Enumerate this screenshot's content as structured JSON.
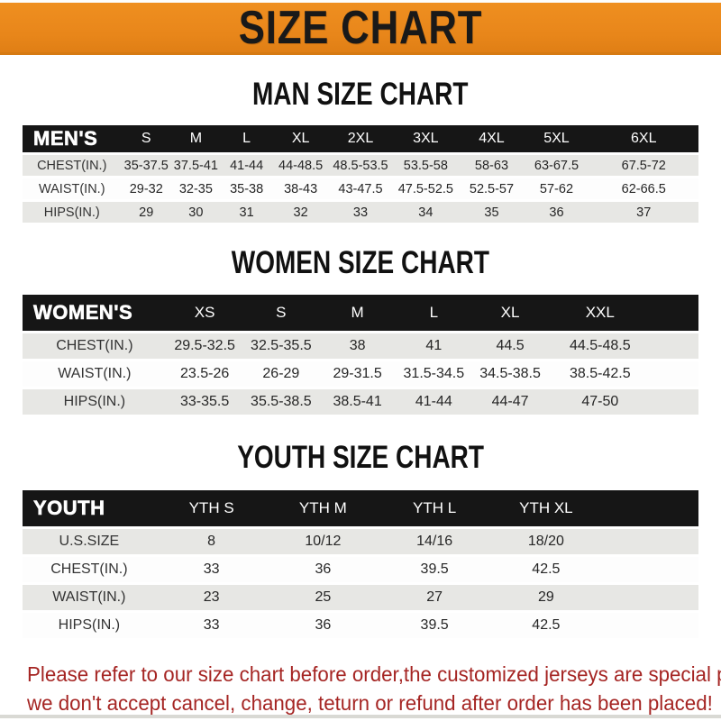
{
  "banner": {
    "title": "SIZE CHART",
    "bg_color": "#E8861A",
    "text_color": "#191919"
  },
  "sections": [
    {
      "title": "MAN SIZE CHART",
      "header_label": "MEN'S",
      "columns": [
        "S",
        "M",
        "L",
        "XL",
        "2XL",
        "3XL",
        "4XL",
        "5XL",
        "6XL"
      ],
      "rows": [
        {
          "label": "CHEST(IN.)",
          "values": [
            "35-37.5",
            "37.5-41",
            "41-44",
            "44-48.5",
            "48.5-53.5",
            "53.5-58",
            "58-63",
            "63-67.5",
            "67.5-72"
          ]
        },
        {
          "label": "WAIST(IN.)",
          "values": [
            "29-32",
            "32-35",
            "35-38",
            "38-43",
            "43-47.5",
            "47.5-52.5",
            "52.5-57",
            "57-62",
            "62-66.5"
          ]
        },
        {
          "label": "HIPS(IN.)",
          "values": [
            "29",
            "30",
            "31",
            "32",
            "33",
            "34",
            "35",
            "36",
            "37"
          ]
        }
      ]
    },
    {
      "title": "WOMEN SIZE CHART",
      "header_label": "WOMEN'S",
      "columns": [
        "XS",
        "S",
        "M",
        "L",
        "XL",
        "XXL"
      ],
      "rows": [
        {
          "label": "CHEST(IN.)",
          "values": [
            "29.5-32.5",
            "32.5-35.5",
            "38",
            "41",
            "44.5",
            "44.5-48.5"
          ]
        },
        {
          "label": "WAIST(IN.)",
          "values": [
            "23.5-26",
            "26-29",
            "29-31.5",
            "31.5-34.5",
            "34.5-38.5",
            "38.5-42.5"
          ]
        },
        {
          "label": "HIPS(IN.)",
          "values": [
            "33-35.5",
            "35.5-38.5",
            "38.5-41",
            "41-44",
            "44-47",
            "47-50"
          ]
        }
      ]
    },
    {
      "title": "YOUTH SIZE CHART",
      "header_label": "YOUTH",
      "columns": [
        "YTH S",
        "YTH M",
        "YTH L",
        "YTH XL"
      ],
      "rows": [
        {
          "label": "U.S.SIZE",
          "values": [
            "8",
            "10/12",
            "14/16",
            "18/20"
          ]
        },
        {
          "label": "CHEST(IN.)",
          "values": [
            "33",
            "36",
            "39.5",
            "42.5"
          ]
        },
        {
          "label": "WAIST(IN.)",
          "values": [
            "23",
            "25",
            "27",
            "29"
          ]
        },
        {
          "label": "HIPS(IN.)",
          "values": [
            "33",
            "36",
            "39.5",
            "42.5"
          ]
        }
      ]
    }
  ],
  "footer": {
    "line1": "Please refer to our size chart before order,the customized jerseys are special products,",
    "line2": "we don't accept cancel, change, teturn or refund after order has been placed!",
    "text_color": "#A52523"
  },
  "colors": {
    "banner_orange": "#E8861A",
    "header_bar_black": "#161616",
    "row_gray": "#E7E7E4",
    "row_white": "#FDFDFD",
    "footer_red": "#A52523"
  }
}
